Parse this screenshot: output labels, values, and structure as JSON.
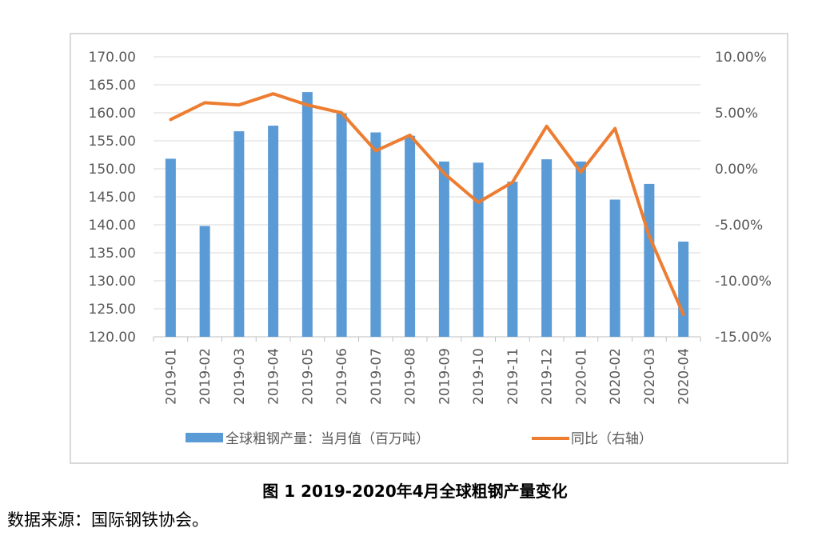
{
  "chart_data": {
    "type": "bar",
    "categories": [
      "2019-01",
      "2019-02",
      "2019-03",
      "2019-04",
      "2019-05",
      "2019-06",
      "2019-07",
      "2019-08",
      "2019-09",
      "2019-10",
      "2019-11",
      "2019-12",
      "2020-01",
      "2020-02",
      "2020-03",
      "2020-04"
    ],
    "series": [
      {
        "name": "全球粗钢产量：当月值（百万吨）",
        "type": "bar",
        "axis": "left",
        "color": "#5b9bd5",
        "values": [
          151.8,
          139.8,
          156.7,
          157.7,
          163.7,
          159.9,
          156.5,
          155.9,
          151.3,
          151.1,
          147.7,
          151.7,
          151.3,
          144.5,
          147.3,
          137.0
        ]
      },
      {
        "name": "同比（右轴）",
        "type": "line",
        "axis": "right",
        "color": "#ed7d31",
        "values": [
          4.4,
          5.9,
          5.7,
          6.7,
          5.7,
          5.0,
          1.6,
          3.0,
          -0.4,
          -3.0,
          -1.2,
          3.8,
          -0.3,
          3.6,
          -6.0,
          -13.0
        ]
      }
    ],
    "ylim": [
      120,
      170
    ],
    "ylim_right": [
      -15,
      10
    ],
    "yticks_left": [
      "170.00",
      "165.00",
      "160.00",
      "155.00",
      "150.00",
      "145.00",
      "140.00",
      "135.00",
      "130.00",
      "125.00",
      "120.00"
    ],
    "yticks_right": [
      "10.00%",
      "5.00%",
      "0.00%",
      "-5.00%",
      "-10.00%",
      "-15.00%"
    ],
    "grid": true,
    "legend_position": "bottom"
  },
  "caption": "图 1 2019-2020年4月全球粗钢产量变化",
  "source": "数据来源：国际钢铁协会。"
}
